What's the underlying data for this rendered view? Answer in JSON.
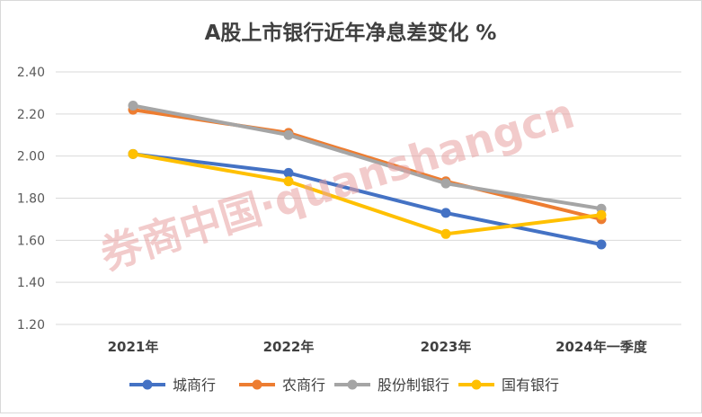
{
  "chart_data": {
    "type": "line",
    "title": "A股上市银行近年净息差变化 %",
    "categories": [
      "2021年",
      "2022年",
      "2023年",
      "2024年一季度"
    ],
    "ylim": [
      1.2,
      2.4
    ],
    "yticks": [
      1.2,
      1.4,
      1.6,
      1.8,
      2.0,
      2.2,
      2.4
    ],
    "ytick_labels": [
      "1.20",
      "1.40",
      "1.60",
      "1.80",
      "2.00",
      "2.20",
      "2.40"
    ],
    "grid": true,
    "legend": "bottom",
    "series": [
      {
        "name": "城商行",
        "color": "#4472C4",
        "values": [
          2.01,
          1.92,
          1.73,
          1.58
        ]
      },
      {
        "name": "农商行",
        "color": "#ED7D31",
        "values": [
          2.22,
          2.11,
          1.88,
          1.7
        ]
      },
      {
        "name": "股份制银行",
        "color": "#A5A5A5",
        "values": [
          2.24,
          2.1,
          1.87,
          1.75
        ]
      },
      {
        "name": "国有银行",
        "color": "#FFC000",
        "values": [
          2.01,
          1.88,
          1.63,
          1.72
        ]
      }
    ],
    "watermark": "券商中国·quanshangcn"
  }
}
